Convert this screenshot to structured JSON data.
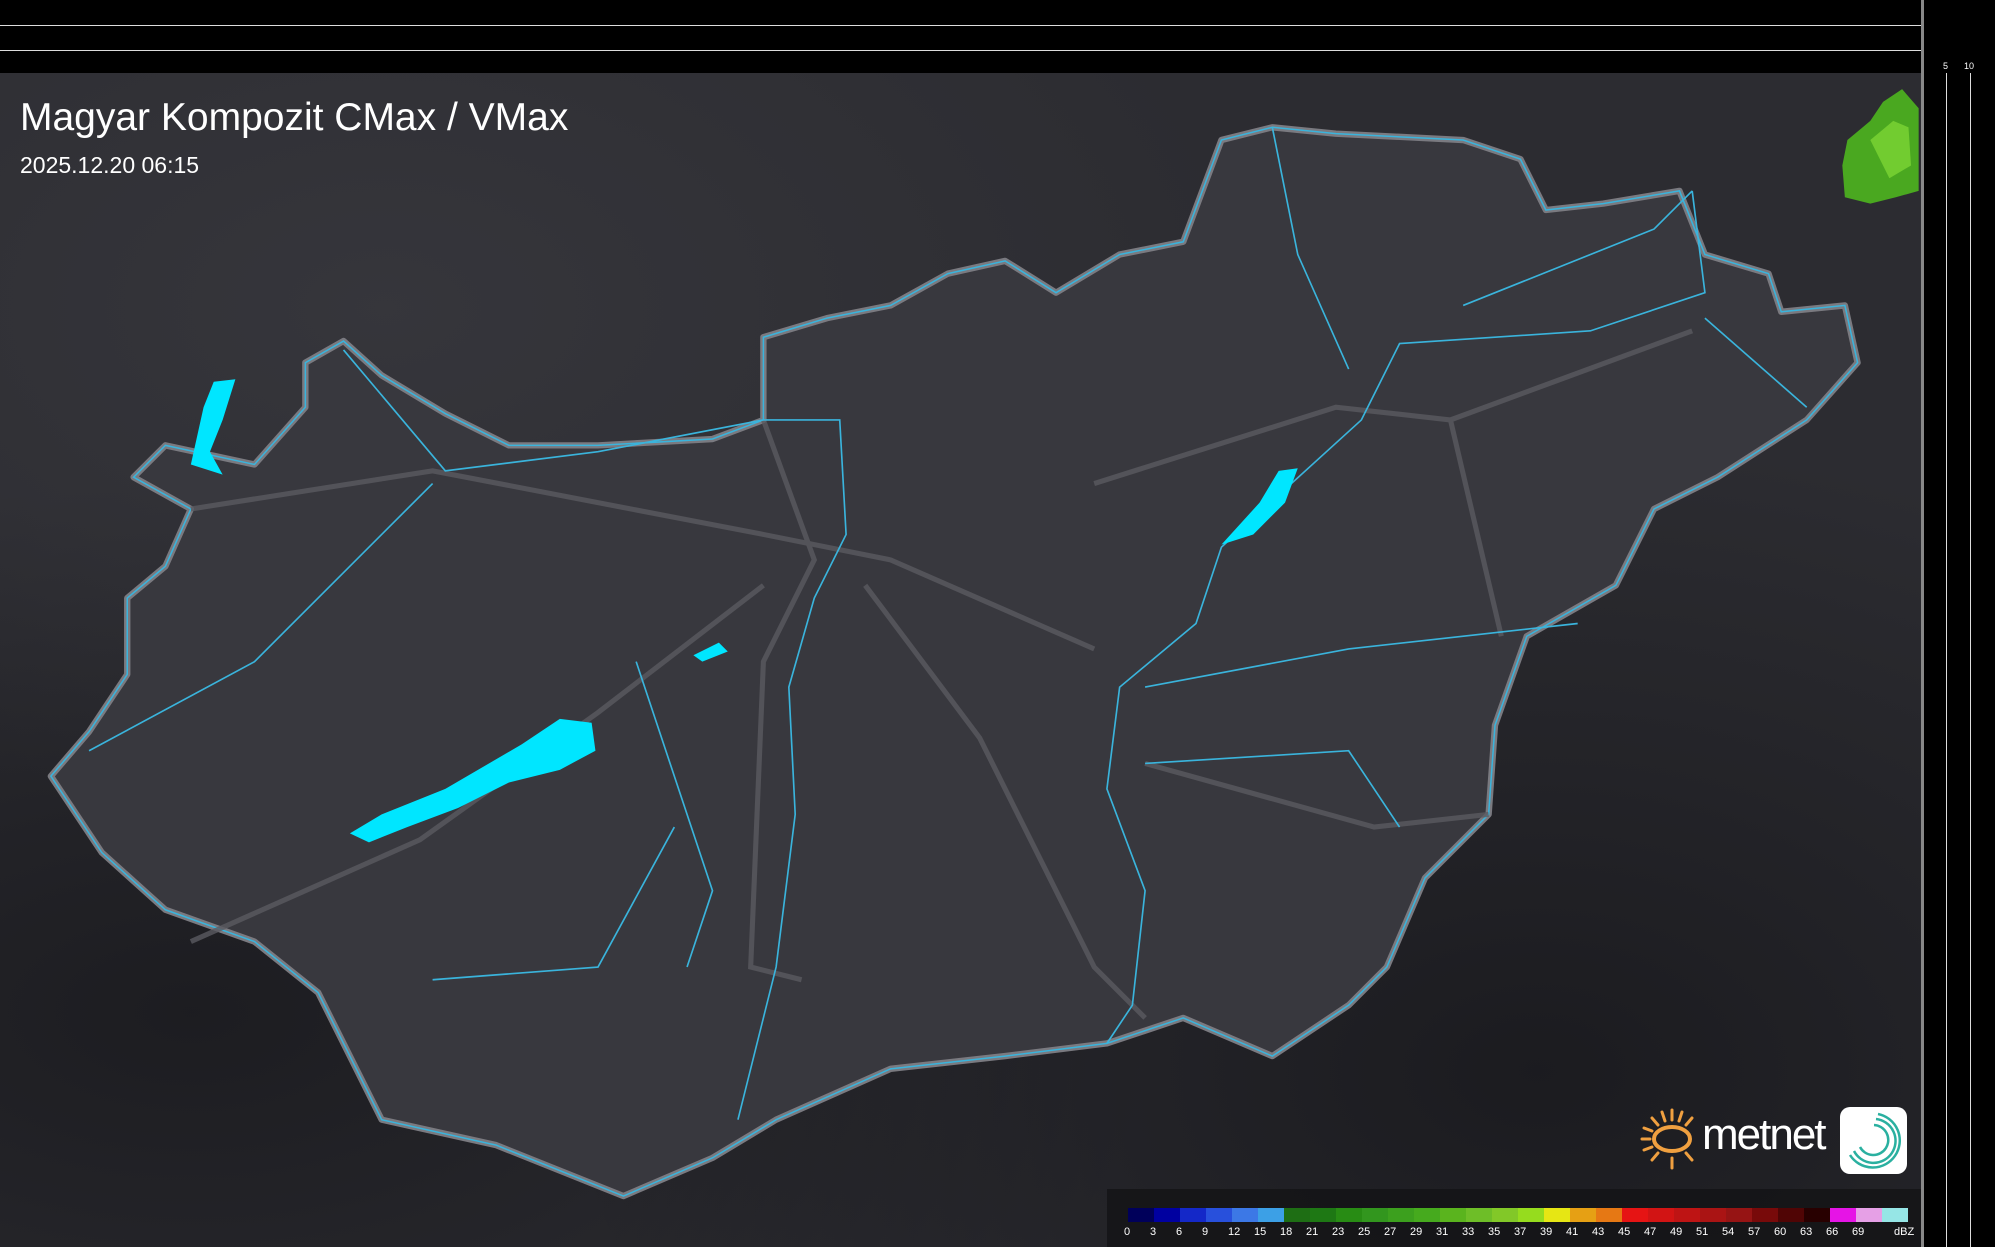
{
  "header": {
    "title": "Magyar Kompozit CMax / VMax",
    "timestamp": "2025.12.20 06:15"
  },
  "profile_axes": {
    "top_ticks": [
      "10",
      "5"
    ],
    "right_ticks": [
      "5",
      "10"
    ]
  },
  "legend": {
    "unit": "dBZ",
    "labels": [
      "0",
      "3",
      "6",
      "9",
      "12",
      "15",
      "18",
      "21",
      "23",
      "25",
      "27",
      "29",
      "31",
      "33",
      "35",
      "37",
      "39",
      "41",
      "43",
      "45",
      "47",
      "49",
      "51",
      "54",
      "57",
      "60",
      "63",
      "66",
      "69"
    ],
    "colors": [
      "#00005a",
      "#0000a0",
      "#1428c8",
      "#2850dc",
      "#3c78e6",
      "#3ca0e6",
      "#1e6e14",
      "#1e7814",
      "#288c14",
      "#32961e",
      "#3ca01e",
      "#46aa1e",
      "#5ab41e",
      "#6ebe28",
      "#82c828",
      "#96dc1e",
      "#e6e614",
      "#e6a014",
      "#e67814",
      "#e61414",
      "#d21414",
      "#be1414",
      "#aa1414",
      "#961414",
      "#780a0a",
      "#500505",
      "#280000",
      "#e614e6",
      "#e6a0e6",
      "#96e6e6"
    ]
  },
  "branding": {
    "logo_text": "metnet",
    "accent": "#f0a040"
  },
  "map_colors": {
    "border": "#7a7a80",
    "river": "#3ab4dc",
    "lake": "#00e6ff",
    "echo": "#5ab41e"
  }
}
